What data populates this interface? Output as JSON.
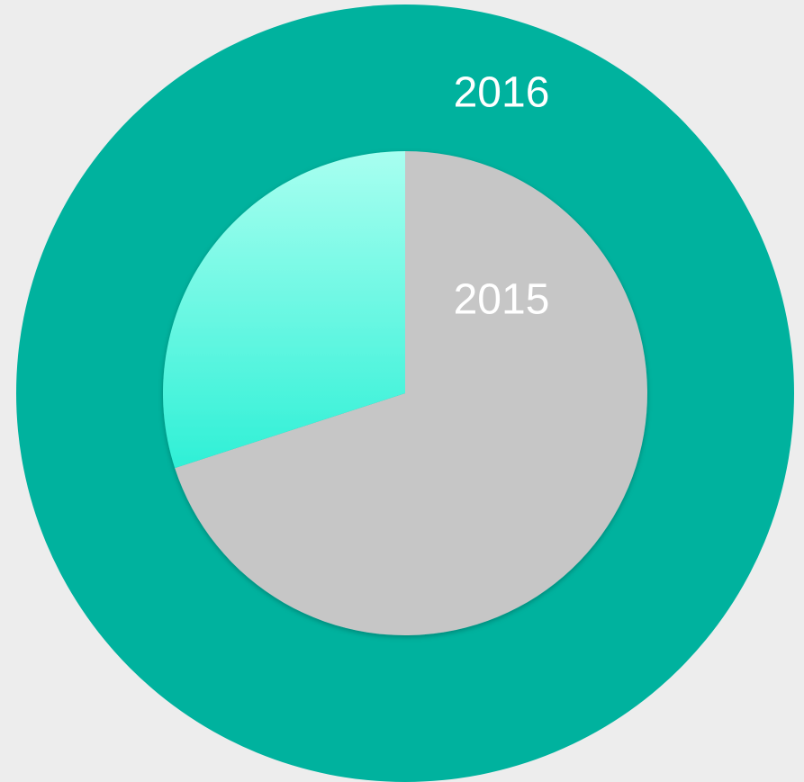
{
  "chart_data": {
    "type": "pie",
    "series": [
      {
        "name": "2016",
        "values": [
          100
        ],
        "colors": [
          "#00b29e"
        ]
      },
      {
        "name": "2015",
        "values": [
          70,
          30
        ],
        "colors": [
          "#c6c6c6",
          [
            "#a8fff0",
            "#2ff0d6"
          ]
        ]
      }
    ]
  }
}
